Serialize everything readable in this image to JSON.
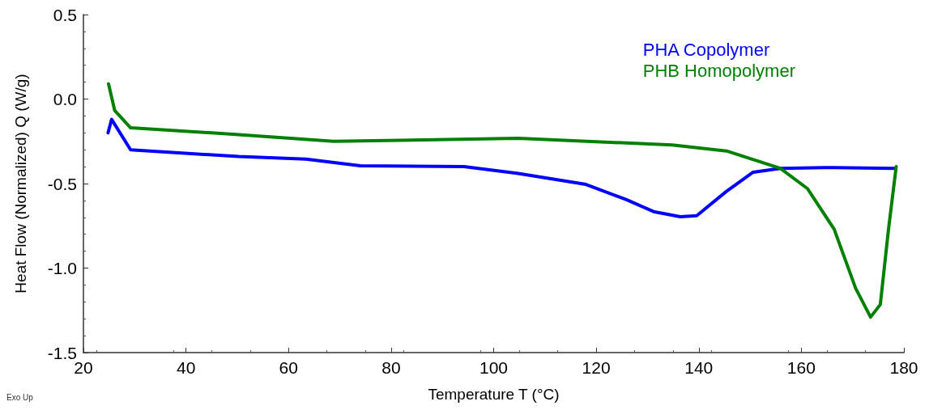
{
  "chart_data": {
    "type": "line",
    "xlabel": "Temperature T (°C)",
    "ylabel": "Heat Flow (Normalized) Q (W/g)",
    "annotations": [
      "Exo Up"
    ],
    "xlim": [
      20,
      180
    ],
    "xticks": [
      20,
      40,
      60,
      80,
      100,
      120,
      140,
      160,
      180
    ],
    "ylim": [
      -1.5,
      0.5
    ],
    "yticks": [
      -1.5,
      {
        "value": -1,
        "label": "-1.0"
      },
      -0.5,
      {
        "value": 0,
        "label": "0.0"
      },
      0.5
    ],
    "grid": false,
    "legend": "top right",
    "marker": "none",
    "line_style": "solid",
    "series": [
      {
        "name": "PHA Copolymer",
        "color": "#0000ff",
        "x": [
          24.8,
          25.5,
          29.2,
          50.3,
          63.4,
          74,
          94.2,
          104.8,
          118,
          125.8,
          131.2,
          136.4,
          139.6,
          145.4,
          150.6,
          155.9,
          166.4,
          178.3
        ],
        "values": [
          -0.2,
          -0.12,
          -0.3,
          -0.34,
          -0.355,
          -0.395,
          -0.4,
          -0.44,
          -0.505,
          -0.594,
          -0.666,
          -0.696,
          -0.69,
          -0.546,
          -0.433,
          -0.41,
          -0.405,
          -0.41
        ]
      },
      {
        "name": "PHB Homopolymer",
        "color": "#008000",
        "x": [
          24.9,
          26.1,
          29.2,
          50.3,
          68.8,
          104.8,
          134.8,
          145.4,
          155.9,
          161.2,
          166.4,
          170.6,
          173.5,
          175.4,
          177,
          178.5
        ],
        "values": [
          0.09,
          -0.068,
          -0.17,
          -0.21,
          -0.25,
          -0.232,
          -0.272,
          -0.307,
          -0.41,
          -0.53,
          -0.77,
          -1.12,
          -1.29,
          -1.216,
          -0.77,
          -0.4
        ]
      }
    ]
  }
}
